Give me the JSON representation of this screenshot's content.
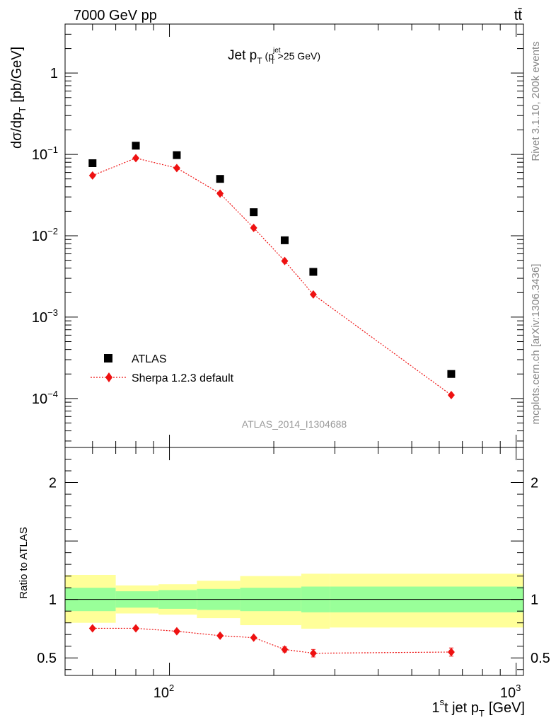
{
  "header": {
    "energy_label": "7000 GeV pp",
    "process_label": "tt̄"
  },
  "side_labels": {
    "rivet": "Rivet 3.1.10,  200k events",
    "mcplots": "mcplots.cern.ch [arXiv:1306.3436]"
  },
  "colors": {
    "data": "#000000",
    "mc": "#ee1111",
    "band_inner": "#99ff99",
    "band_outer": "#ffff99"
  },
  "chart_data": [
    {
      "type": "scatter",
      "panel": "main",
      "title": "Jet p_T (p_T^jet>25 GeV)",
      "title_main": "Jet p",
      "title_sub": "T",
      "title_paren_open": "(p",
      "title_paren_sup": "jet",
      "title_paren_sub": "T",
      "title_paren_rest": ">25 GeV)",
      "ylabel": "dσ/dp_T [pb/GeV]",
      "ylabel_main": "dσ/dp",
      "ylabel_sub": "T",
      "ylabel_unit": "[pb/GeV]",
      "xscale": "log",
      "yscale": "log",
      "xlim": [
        50,
        1050
      ],
      "ylim": [
        2.5e-05,
        4
      ],
      "x_tick_labels": [
        "10",
        "2",
        "10",
        "3"
      ],
      "y_ticks": [
        {
          "value": 1,
          "label": "1",
          "exp": ""
        },
        {
          "value": 0.1,
          "label": "10",
          "exp": "−1"
        },
        {
          "value": 0.01,
          "label": "10",
          "exp": "−2"
        },
        {
          "value": 0.001,
          "label": "10",
          "exp": "−3"
        },
        {
          "value": 0.0001,
          "label": "10",
          "exp": "−4"
        }
      ],
      "legend_position": "lower-left",
      "watermark": "ATLAS_2014_I1304688",
      "series": [
        {
          "name": "ATLAS",
          "marker": "square",
          "color": "#000000",
          "x": [
            60,
            80,
            105,
            140,
            175,
            215,
            260,
            650
          ],
          "y": [
            0.078,
            0.128,
            0.098,
            0.05,
            0.0195,
            0.0088,
            0.0036,
            0.0002
          ]
        },
        {
          "name": "Sherpa 1.2.3 default",
          "marker": "diamond",
          "line": "dotted",
          "color": "#ee1111",
          "x": [
            60,
            80,
            105,
            140,
            175,
            215,
            260,
            650
          ],
          "y": [
            0.055,
            0.09,
            0.068,
            0.033,
            0.0125,
            0.0049,
            0.0019,
            0.00011
          ]
        }
      ]
    },
    {
      "type": "line",
      "panel": "ratio",
      "ylabel": "Ratio to ATLAS",
      "xlabel": "1st jet p_T [GeV]",
      "xlabel_main": "1",
      "xlabel_sup": "s",
      "xlabel_mid": "t jet p",
      "xlabel_sub": "T",
      "xlabel_unit": "[GeV]",
      "xscale": "log",
      "xlim": [
        50,
        1050
      ],
      "ylim": [
        0.35,
        2.3
      ],
      "y_ticks": [
        {
          "value": 2,
          "label": "2"
        },
        {
          "value": 1,
          "label": "1"
        },
        {
          "value": 0.5,
          "label": "0.5"
        }
      ],
      "bands": [
        {
          "x0": 50,
          "x1": 70,
          "inner": [
            0.9,
            1.1
          ],
          "outer": [
            0.8,
            1.21
          ]
        },
        {
          "x0": 70,
          "x1": 93,
          "inner": [
            0.93,
            1.07
          ],
          "outer": [
            0.88,
            1.12
          ]
        },
        {
          "x0": 93,
          "x1": 120,
          "inner": [
            0.92,
            1.08
          ],
          "outer": [
            0.87,
            1.13
          ]
        },
        {
          "x0": 120,
          "x1": 160,
          "inner": [
            0.91,
            1.09
          ],
          "outer": [
            0.84,
            1.16
          ]
        },
        {
          "x0": 160,
          "x1": 240,
          "inner": [
            0.9,
            1.1
          ],
          "outer": [
            0.78,
            1.2
          ]
        },
        {
          "x0": 240,
          "x1": 290,
          "inner": [
            0.89,
            1.11
          ],
          "outer": [
            0.75,
            1.22
          ]
        },
        {
          "x0": 290,
          "x1": 1050,
          "inner": [
            0.89,
            1.11
          ],
          "outer": [
            0.76,
            1.22
          ]
        }
      ],
      "series": [
        {
          "name": "Sherpa 1.2.3 default",
          "marker": "diamond",
          "color": "#ee1111",
          "x": [
            60,
            80,
            105,
            140,
            175,
            215,
            260,
            650
          ],
          "y": [
            0.753,
            0.753,
            0.728,
            0.69,
            0.673,
            0.572,
            0.54,
            0.55
          ],
          "err": [
            0.008,
            0.008,
            0.01,
            0.012,
            0.012,
            0.022,
            0.032,
            0.035
          ]
        }
      ]
    }
  ]
}
